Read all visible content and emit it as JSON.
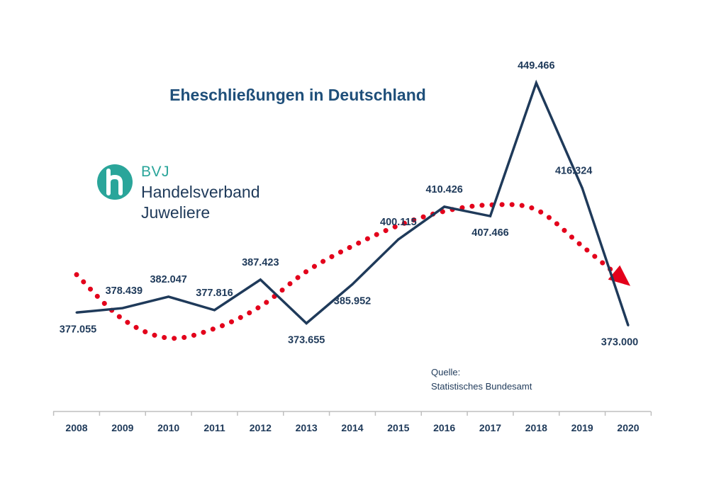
{
  "logo": {
    "abbr": "BVJ",
    "line1": "Handelsverband",
    "line2": "Juweliere",
    "brand_color": "#2aa59a",
    "text_color": "#1f3a5a"
  },
  "source": {
    "label": "Quelle:",
    "name": "Statistisches Bundesamt"
  },
  "chart_data": {
    "type": "line",
    "title": "Eheschließungen in Deutschland",
    "xlabel": "",
    "ylabel": "",
    "categories": [
      "2008",
      "2009",
      "2010",
      "2011",
      "2012",
      "2013",
      "2014",
      "2015",
      "2016",
      "2017",
      "2018",
      "2019",
      "2020"
    ],
    "series": [
      {
        "values": [
          377055,
          378439,
          382047,
          377816,
          387423,
          373655,
          385952,
          400115,
          410426,
          407466,
          449466,
          416324,
          373000
        ],
        "labels": [
          "377.055",
          "378.439",
          "382.047",
          "377.816",
          "387.423",
          "373.655",
          "385.952",
          "400.115",
          "410.426",
          "407.466",
          "449.466",
          "416.324",
          "373.000"
        ],
        "color": "#1f3a5a"
      }
    ],
    "trend": {
      "style": "dotted",
      "color": "#e3001b",
      "arrow": true,
      "values": [
        389000,
        375000,
        369000,
        372000,
        379000,
        390000,
        398000,
        404500,
        409000,
        411000,
        409500,
        398000,
        386000
      ]
    },
    "ylim": [
      355000,
      460000
    ],
    "grid": false,
    "legend": "none"
  }
}
